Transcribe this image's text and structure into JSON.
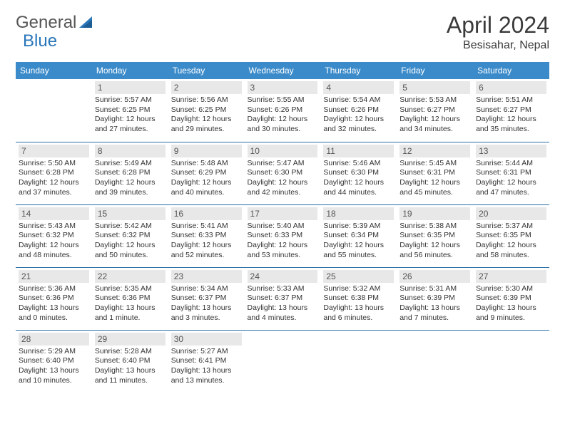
{
  "logo": {
    "text1": "General",
    "text2": "Blue"
  },
  "title": {
    "month": "April 2024",
    "location": "Besisahar, Nepal"
  },
  "calendar": {
    "type": "table",
    "header_bg": "#3b8bca",
    "header_fg": "#ffffff",
    "daynum_bg": "#e8e8e8",
    "border_color": "#2f6fa5",
    "text_color": "#333333",
    "font_size_body": 10.5,
    "font_size_header": 12,
    "columns": [
      "Sunday",
      "Monday",
      "Tuesday",
      "Wednesday",
      "Thursday",
      "Friday",
      "Saturday"
    ],
    "weeks": [
      [
        null,
        {
          "n": "1",
          "sr": "Sunrise: 5:57 AM",
          "ss": "Sunset: 6:25 PM",
          "dl": "Daylight: 12 hours and 27 minutes."
        },
        {
          "n": "2",
          "sr": "Sunrise: 5:56 AM",
          "ss": "Sunset: 6:25 PM",
          "dl": "Daylight: 12 hours and 29 minutes."
        },
        {
          "n": "3",
          "sr": "Sunrise: 5:55 AM",
          "ss": "Sunset: 6:26 PM",
          "dl": "Daylight: 12 hours and 30 minutes."
        },
        {
          "n": "4",
          "sr": "Sunrise: 5:54 AM",
          "ss": "Sunset: 6:26 PM",
          "dl": "Daylight: 12 hours and 32 minutes."
        },
        {
          "n": "5",
          "sr": "Sunrise: 5:53 AM",
          "ss": "Sunset: 6:27 PM",
          "dl": "Daylight: 12 hours and 34 minutes."
        },
        {
          "n": "6",
          "sr": "Sunrise: 5:51 AM",
          "ss": "Sunset: 6:27 PM",
          "dl": "Daylight: 12 hours and 35 minutes."
        }
      ],
      [
        {
          "n": "7",
          "sr": "Sunrise: 5:50 AM",
          "ss": "Sunset: 6:28 PM",
          "dl": "Daylight: 12 hours and 37 minutes."
        },
        {
          "n": "8",
          "sr": "Sunrise: 5:49 AM",
          "ss": "Sunset: 6:28 PM",
          "dl": "Daylight: 12 hours and 39 minutes."
        },
        {
          "n": "9",
          "sr": "Sunrise: 5:48 AM",
          "ss": "Sunset: 6:29 PM",
          "dl": "Daylight: 12 hours and 40 minutes."
        },
        {
          "n": "10",
          "sr": "Sunrise: 5:47 AM",
          "ss": "Sunset: 6:30 PM",
          "dl": "Daylight: 12 hours and 42 minutes."
        },
        {
          "n": "11",
          "sr": "Sunrise: 5:46 AM",
          "ss": "Sunset: 6:30 PM",
          "dl": "Daylight: 12 hours and 44 minutes."
        },
        {
          "n": "12",
          "sr": "Sunrise: 5:45 AM",
          "ss": "Sunset: 6:31 PM",
          "dl": "Daylight: 12 hours and 45 minutes."
        },
        {
          "n": "13",
          "sr": "Sunrise: 5:44 AM",
          "ss": "Sunset: 6:31 PM",
          "dl": "Daylight: 12 hours and 47 minutes."
        }
      ],
      [
        {
          "n": "14",
          "sr": "Sunrise: 5:43 AM",
          "ss": "Sunset: 6:32 PM",
          "dl": "Daylight: 12 hours and 48 minutes."
        },
        {
          "n": "15",
          "sr": "Sunrise: 5:42 AM",
          "ss": "Sunset: 6:32 PM",
          "dl": "Daylight: 12 hours and 50 minutes."
        },
        {
          "n": "16",
          "sr": "Sunrise: 5:41 AM",
          "ss": "Sunset: 6:33 PM",
          "dl": "Daylight: 12 hours and 52 minutes."
        },
        {
          "n": "17",
          "sr": "Sunrise: 5:40 AM",
          "ss": "Sunset: 6:33 PM",
          "dl": "Daylight: 12 hours and 53 minutes."
        },
        {
          "n": "18",
          "sr": "Sunrise: 5:39 AM",
          "ss": "Sunset: 6:34 PM",
          "dl": "Daylight: 12 hours and 55 minutes."
        },
        {
          "n": "19",
          "sr": "Sunrise: 5:38 AM",
          "ss": "Sunset: 6:35 PM",
          "dl": "Daylight: 12 hours and 56 minutes."
        },
        {
          "n": "20",
          "sr": "Sunrise: 5:37 AM",
          "ss": "Sunset: 6:35 PM",
          "dl": "Daylight: 12 hours and 58 minutes."
        }
      ],
      [
        {
          "n": "21",
          "sr": "Sunrise: 5:36 AM",
          "ss": "Sunset: 6:36 PM",
          "dl": "Daylight: 13 hours and 0 minutes."
        },
        {
          "n": "22",
          "sr": "Sunrise: 5:35 AM",
          "ss": "Sunset: 6:36 PM",
          "dl": "Daylight: 13 hours and 1 minute."
        },
        {
          "n": "23",
          "sr": "Sunrise: 5:34 AM",
          "ss": "Sunset: 6:37 PM",
          "dl": "Daylight: 13 hours and 3 minutes."
        },
        {
          "n": "24",
          "sr": "Sunrise: 5:33 AM",
          "ss": "Sunset: 6:37 PM",
          "dl": "Daylight: 13 hours and 4 minutes."
        },
        {
          "n": "25",
          "sr": "Sunrise: 5:32 AM",
          "ss": "Sunset: 6:38 PM",
          "dl": "Daylight: 13 hours and 6 minutes."
        },
        {
          "n": "26",
          "sr": "Sunrise: 5:31 AM",
          "ss": "Sunset: 6:39 PM",
          "dl": "Daylight: 13 hours and 7 minutes."
        },
        {
          "n": "27",
          "sr": "Sunrise: 5:30 AM",
          "ss": "Sunset: 6:39 PM",
          "dl": "Daylight: 13 hours and 9 minutes."
        }
      ],
      [
        {
          "n": "28",
          "sr": "Sunrise: 5:29 AM",
          "ss": "Sunset: 6:40 PM",
          "dl": "Daylight: 13 hours and 10 minutes."
        },
        {
          "n": "29",
          "sr": "Sunrise: 5:28 AM",
          "ss": "Sunset: 6:40 PM",
          "dl": "Daylight: 13 hours and 11 minutes."
        },
        {
          "n": "30",
          "sr": "Sunrise: 5:27 AM",
          "ss": "Sunset: 6:41 PM",
          "dl": "Daylight: 13 hours and 13 minutes."
        },
        null,
        null,
        null,
        null
      ]
    ]
  }
}
